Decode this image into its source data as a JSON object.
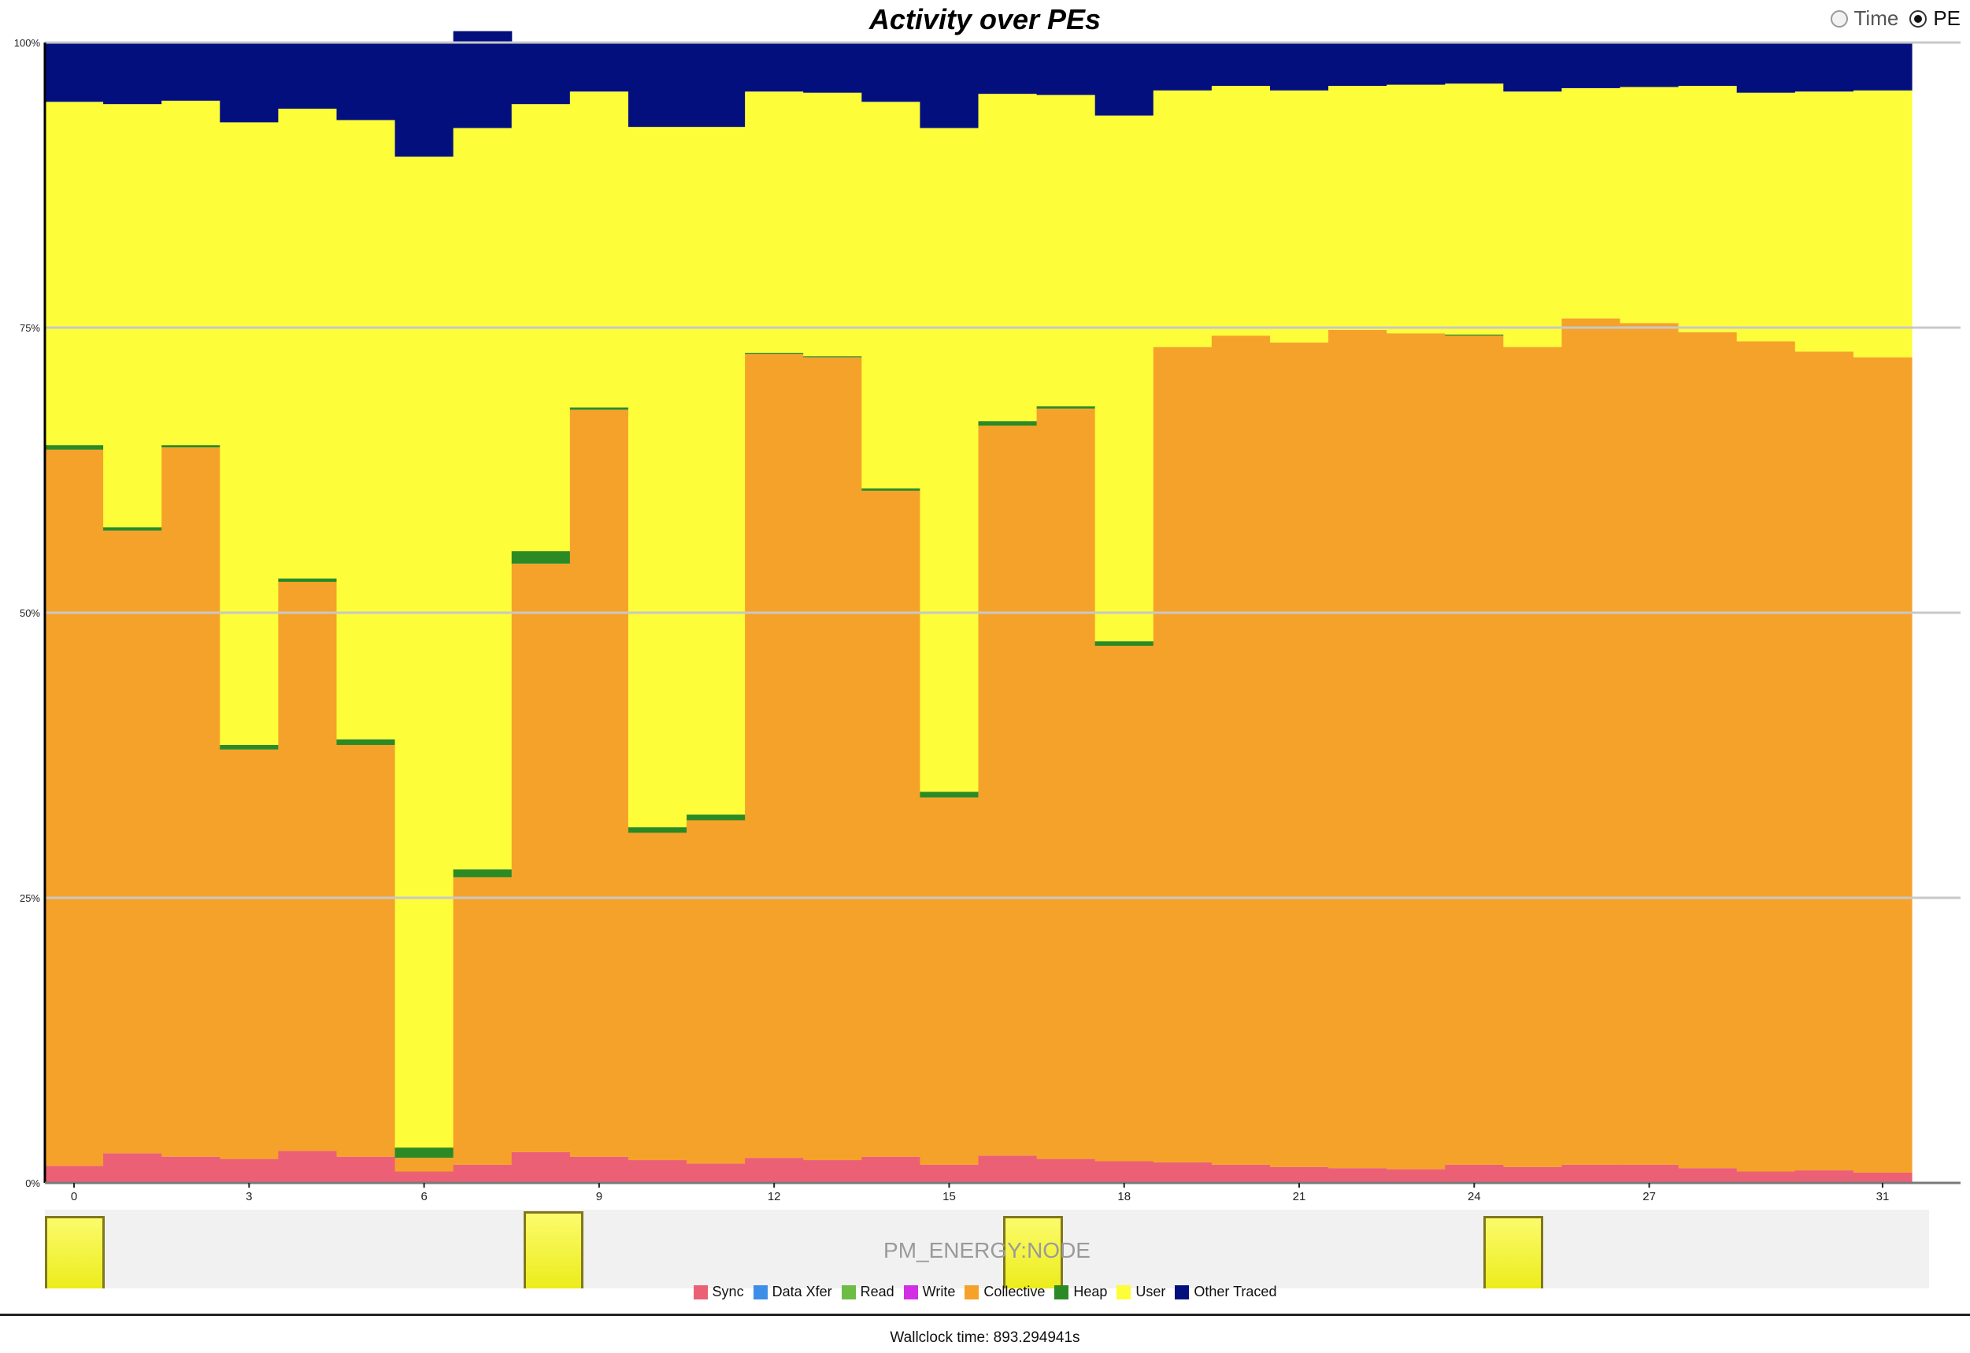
{
  "toggle": {
    "time_label": "Time",
    "pe_label": "PE",
    "selected": "PE"
  },
  "strip": {
    "label": "PM_ENERGY:NODE",
    "color": "#f3f32e",
    "border_color": "#80781d"
  },
  "footer": {
    "wallclock": "Wallclock time: 893.294941s"
  },
  "chart_data": {
    "type": "bar",
    "stacked": true,
    "title": "Activity over PEs",
    "xlabel": "",
    "ylabel": "",
    "ylim": [
      0,
      100
    ],
    "y_ticks": [
      "0%",
      "25%",
      "50%",
      "75%",
      "100%"
    ],
    "x_tick_values": [
      0,
      3,
      6,
      9,
      12,
      15,
      18,
      21,
      24,
      27,
      31
    ],
    "grid": true,
    "legend_position": "bottom",
    "categories": [
      0,
      1,
      2,
      3,
      4,
      5,
      6,
      7,
      8,
      9,
      10,
      11,
      12,
      13,
      14,
      15,
      16,
      17,
      18,
      19,
      20,
      21,
      22,
      23,
      24,
      25,
      26,
      27,
      28,
      29,
      30,
      31
    ],
    "series": [
      {
        "name": "Sync",
        "color": "#ec6075",
        "values": [
          1.5,
          2.6,
          2.3,
          2.1,
          2.8,
          2.3,
          1.0,
          1.6,
          2.7,
          2.3,
          2.0,
          1.7,
          2.2,
          2.0,
          2.3,
          1.6,
          2.4,
          2.1,
          1.9,
          1.8,
          1.6,
          1.4,
          1.3,
          1.2,
          1.6,
          1.4,
          1.6,
          1.6,
          1.3,
          1.0,
          1.1,
          0.9
        ]
      },
      {
        "name": "Data Xfer",
        "color": "#3d8ee6",
        "values": [
          0,
          0,
          0,
          0,
          0,
          0,
          0,
          0,
          0,
          0,
          0,
          0,
          0,
          0,
          0,
          0,
          0,
          0,
          0,
          0,
          0,
          0,
          0,
          0,
          0,
          0,
          0,
          0,
          0,
          0,
          0,
          0
        ]
      },
      {
        "name": "Read",
        "color": "#6cbc45",
        "values": [
          0,
          0,
          0,
          0,
          0,
          0,
          0,
          0,
          0,
          0,
          0,
          0,
          0,
          0,
          0,
          0,
          0,
          0,
          0,
          0,
          0,
          0,
          0,
          0,
          0,
          0,
          0,
          0,
          0,
          0,
          0,
          0
        ]
      },
      {
        "name": "Write",
        "color": "#d22ee6",
        "values": [
          0,
          0,
          0,
          0,
          0,
          0,
          0,
          0,
          0,
          0,
          0,
          0,
          0,
          0,
          0,
          0,
          0,
          0,
          0,
          0,
          0,
          0,
          0,
          0,
          0,
          0,
          0,
          0,
          0,
          0,
          0,
          0
        ]
      },
      {
        "name": "Collective",
        "color": "#f5a22a",
        "values": [
          62.8,
          54.6,
          62.2,
          35.9,
          49.9,
          36.1,
          1.2,
          25.2,
          51.6,
          65.5,
          28.7,
          30.1,
          70.5,
          70.4,
          58.4,
          32.2,
          64.0,
          65.8,
          45.2,
          71.5,
          72.7,
          72.3,
          73.5,
          73.3,
          72.7,
          71.9,
          74.2,
          73.8,
          73.3,
          72.8,
          71.8,
          71.5
        ]
      },
      {
        "name": "Heap",
        "color": "#2b8a24",
        "values": [
          0.4,
          0.3,
          0.2,
          0.4,
          0.3,
          0.5,
          0.9,
          0.7,
          1.1,
          0.2,
          0.5,
          0.5,
          0.1,
          0.1,
          0.2,
          0.5,
          0.4,
          0.2,
          0.4,
          0,
          0,
          0,
          0,
          0,
          0.1,
          0,
          0,
          0,
          0,
          0,
          0,
          0
        ]
      },
      {
        "name": "User",
        "color": "#fdfd3a",
        "values": [
          30.1,
          37.1,
          30.2,
          54.6,
          41.2,
          54.3,
          86.9,
          65.0,
          39.2,
          27.7,
          61.4,
          60.3,
          22.9,
          23.1,
          33.9,
          58.2,
          28.7,
          27.3,
          46.1,
          22.5,
          21.9,
          22.1,
          21.4,
          21.8,
          22.0,
          22.4,
          20.2,
          20.7,
          21.6,
          21.8,
          22.8,
          23.4
        ]
      },
      {
        "name": "Other Traced",
        "color": "#040f7e",
        "values": [
          5.2,
          5.4,
          5.1,
          7.0,
          5.8,
          6.8,
          10.0,
          8.5,
          5.4,
          4.3,
          7.4,
          7.4,
          4.3,
          4.4,
          5.2,
          7.5,
          4.5,
          4.6,
          6.4,
          4.2,
          3.8,
          4.2,
          3.8,
          3.7,
          3.6,
          4.3,
          4.0,
          3.9,
          3.8,
          4.4,
          4.3,
          4.2
        ]
      }
    ]
  }
}
